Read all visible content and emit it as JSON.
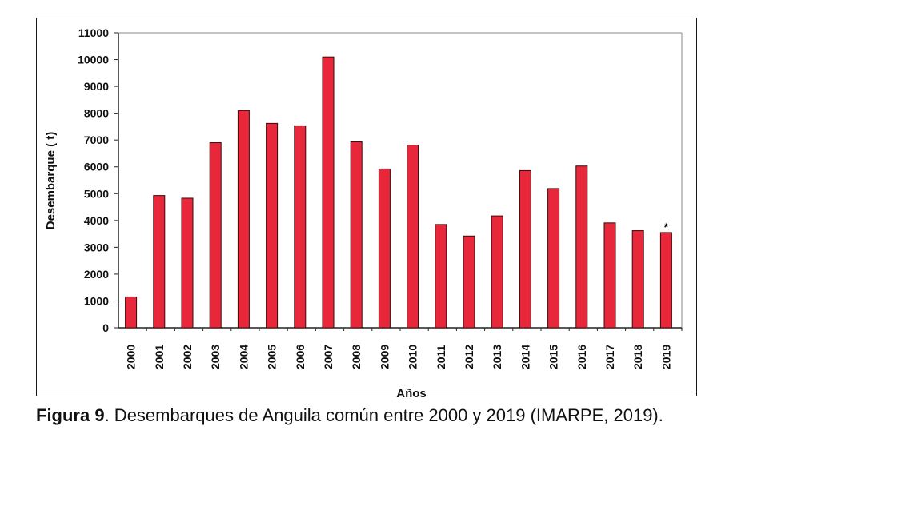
{
  "chart_data": {
    "type": "bar",
    "categories": [
      "2000",
      "2001",
      "2002",
      "2003",
      "2004",
      "2005",
      "2006",
      "2007",
      "2008",
      "2009",
      "2010",
      "2011",
      "2012",
      "2013",
      "2014",
      "2015",
      "2016",
      "2017",
      "2018",
      "2019"
    ],
    "values": [
      1150,
      4930,
      4830,
      6900,
      8100,
      7620,
      7530,
      10100,
      6930,
      5920,
      6810,
      3850,
      3420,
      4170,
      5860,
      5190,
      6030,
      3910,
      3620,
      3550
    ],
    "xlabel": "Años",
    "ylabel": "Desembarque ( t)",
    "ylim": [
      0,
      11000
    ],
    "yticks": [
      "0",
      "1000",
      "2000",
      "3000",
      "4000",
      "5000",
      "6000",
      "7000",
      "8000",
      "9000",
      "10000",
      "11000"
    ],
    "annotations": [
      {
        "category": "2019",
        "text": "*"
      }
    ],
    "bar_color": "#e8283a",
    "grid": false
  },
  "caption": {
    "label": "Figura 9",
    "text": ". Desembarques de Anguila común entre 2000 y 2019 (IMARPE, 2019)."
  }
}
